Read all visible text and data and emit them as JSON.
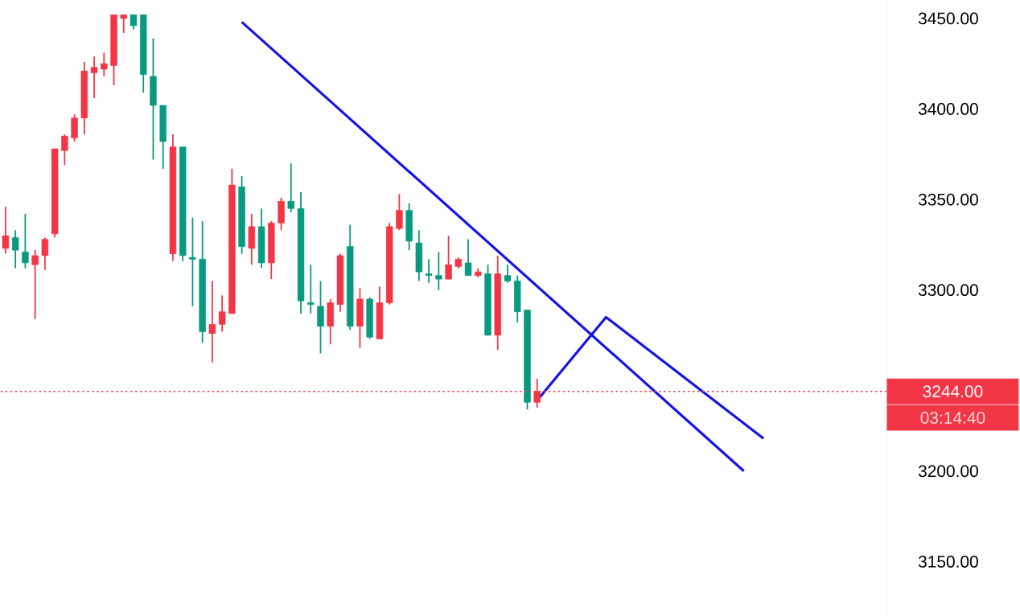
{
  "chart_data": {
    "type": "candlestick",
    "categories": [
      null,
      null,
      null,
      null,
      null,
      null,
      null,
      null,
      null,
      null,
      null,
      null,
      null,
      null,
      null,
      null,
      null,
      null,
      null,
      null,
      null,
      null,
      null,
      null,
      null,
      null,
      null,
      null,
      null,
      null,
      null,
      null,
      null,
      null,
      null,
      null,
      null,
      null,
      null,
      null,
      null,
      null,
      null,
      null,
      null,
      null,
      null,
      null,
      null,
      null,
      null,
      null,
      null,
      null,
      null,
      null,
      null,
      null,
      null,
      null,
      null,
      null,
      null,
      null,
      null,
      null,
      null,
      null,
      null,
      null,
      null,
      null,
      null,
      null,
      null,
      null,
      null,
      null,
      null,
      null,
      null,
      null,
      null,
      null,
      null,
      null,
      null,
      null,
      null,
      null
    ],
    "ohlc": [
      [
        3323,
        3346,
        3320,
        3330
      ],
      [
        3329,
        3333,
        3312,
        3322
      ],
      [
        3321,
        3342,
        3312,
        3315
      ],
      [
        3314,
        3322,
        3284,
        3319
      ],
      [
        3319,
        3329,
        3311,
        3328
      ],
      [
        3331,
        3378,
        3329,
        3378
      ],
      [
        3377,
        3386,
        3369,
        3385
      ],
      [
        3384,
        3397,
        3382,
        3395
      ],
      [
        3395,
        3426,
        3386,
        3421
      ],
      [
        3420,
        3429,
        3406,
        3423
      ],
      [
        3422,
        3431,
        3418,
        3425
      ],
      [
        3424,
        3452,
        3413,
        3452
      ],
      [
        3450,
        3452,
        3442,
        3452
      ],
      [
        3452,
        3452,
        3444,
        3446
      ],
      [
        3452,
        3452,
        3409,
        3419
      ],
      [
        3418,
        3439,
        3372,
        3402
      ],
      [
        3402,
        3402,
        3367,
        3382
      ],
      [
        3320,
        3386,
        3316,
        3379
      ],
      [
        3379,
        3379,
        3316,
        3319
      ],
      [
        3318,
        3340,
        3291,
        3317
      ],
      [
        3317,
        3338,
        3271,
        3277
      ],
      [
        3276,
        3305,
        3260,
        3281
      ],
      [
        3281,
        3297,
        3277,
        3288
      ],
      [
        3287,
        3367,
        3287,
        3358
      ],
      [
        3357,
        3363,
        3320,
        3324
      ],
      [
        3323,
        3342,
        3314,
        3335
      ],
      [
        3335,
        3345,
        3312,
        3315
      ],
      [
        3315,
        3338,
        3306,
        3337
      ],
      [
        3337,
        3351,
        3333,
        3349
      ],
      [
        3349,
        3370,
        3343,
        3345
      ],
      [
        3345,
        3354,
        3287,
        3294
      ],
      [
        3293,
        3314,
        3287,
        3292
      ],
      [
        3291,
        3305,
        3265,
        3280
      ],
      [
        3280,
        3295,
        3270,
        3293
      ],
      [
        3292,
        3320,
        3288,
        3319
      ],
      [
        3324,
        3336,
        3278,
        3280
      ],
      [
        3280,
        3301,
        3268,
        3295
      ],
      [
        3295,
        3296,
        3273,
        3274
      ],
      [
        3273,
        3302,
        3273,
        3293
      ],
      [
        3293,
        3337,
        3292,
        3335
      ],
      [
        3334,
        3353,
        3333,
        3344
      ],
      [
        3344,
        3348,
        3322,
        3327
      ],
      [
        3326,
        3333,
        3305,
        3310
      ],
      [
        3309,
        3317,
        3304,
        3308
      ],
      [
        3308,
        3321,
        3300,
        3306
      ],
      [
        3306,
        3330,
        3306,
        3314
      ],
      [
        3313,
        3318,
        3312,
        3317
      ],
      [
        3315,
        3328,
        3308,
        3308
      ],
      [
        3308,
        3312,
        3307,
        3310
      ],
      [
        3309,
        3314,
        3275,
        3275
      ],
      [
        3275,
        3319,
        3267,
        3309
      ],
      [
        3308,
        3314,
        3304,
        3305
      ],
      [
        3305,
        3308,
        3282,
        3288
      ],
      [
        3289,
        3289,
        3234,
        3238
      ],
      [
        3238,
        3251,
        3235,
        3244
      ],
      null,
      null,
      null,
      null,
      null,
      null,
      null,
      null,
      null,
      null,
      null,
      null,
      null,
      null,
      null,
      null,
      null,
      null,
      null,
      null,
      null,
      null,
      null,
      null,
      null,
      null,
      null,
      null,
      null,
      null,
      null,
      null,
      null,
      null,
      null
    ],
    "colors": [
      "#f23645",
      "#089981",
      "#089981",
      "#f23645",
      "#f23645",
      "#f23645",
      "#f23645",
      "#f23645",
      "#f23645",
      "#f23645",
      "#f23645",
      "#f23645",
      "#f23645",
      "#089981",
      "#089981",
      "#089981",
      "#089981",
      "#f23645",
      "#089981",
      "#089981",
      "#089981",
      "#f23645",
      "#f23645",
      "#f23645",
      "#089981",
      "#f23645",
      "#089981",
      "#f23645",
      "#f23645",
      "#089981",
      "#089981",
      "#089981",
      "#089981",
      "#f23645",
      "#f23645",
      "#089981",
      "#f23645",
      "#089981",
      "#f23645",
      "#f23645",
      "#f23645",
      "#089981",
      "#089981",
      "#089981",
      "#089981",
      "#f23645",
      "#f23645",
      "#089981",
      "#f23645",
      "#089981",
      "#f23645",
      "#089981",
      "#089981",
      "#089981",
      "#f23645",
      null,
      null,
      null,
      null,
      null,
      null,
      null,
      null,
      null,
      null,
      null,
      null,
      null,
      null,
      null,
      null,
      null,
      null,
      null,
      null,
      null,
      null,
      null,
      null,
      null,
      null,
      null,
      null,
      null,
      null,
      null,
      null,
      null,
      null,
      null
    ],
    "ylim": [
      3120,
      3460
    ],
    "yticks": [
      {
        "value": 3150,
        "label": "3150.00"
      },
      {
        "value": 3200,
        "label": "3200.00"
      },
      {
        "value": 3300,
        "label": "3300.00"
      },
      {
        "value": 3350,
        "label": "3350.00"
      },
      {
        "value": 3400,
        "label": "3400.00"
      },
      {
        "value": 3450,
        "label": "3450.00"
      }
    ],
    "tick_labels": "y",
    "series": [
      {
        "type": "line",
        "color": "#1414e6",
        "values": [
          null,
          null,
          null,
          null,
          null,
          null,
          null,
          null,
          null,
          null,
          null,
          null,
          null,
          null,
          null,
          null,
          null,
          null,
          null,
          null,
          null,
          null,
          null,
          null,
          3448,
          null,
          null,
          null,
          null,
          null,
          null,
          null,
          null,
          null,
          null,
          null,
          null,
          null,
          null,
          null,
          null,
          null,
          null,
          null,
          null,
          null,
          null,
          null,
          null,
          null,
          null,
          null,
          null,
          null,
          null,
          null,
          null,
          null,
          null,
          null,
          null,
          null,
          null,
          null,
          null,
          null,
          null,
          null,
          null,
          null,
          null,
          null,
          null,
          null,
          null,
          3200,
          null,
          null,
          null,
          null,
          null,
          null,
          null,
          null,
          null,
          null,
          null,
          null,
          null,
          null
        ]
      },
      {
        "type": "line",
        "color": "#1414e6",
        "values": [
          null,
          null,
          null,
          null,
          null,
          null,
          null,
          null,
          null,
          null,
          null,
          null,
          null,
          null,
          null,
          null,
          null,
          null,
          null,
          null,
          null,
          null,
          null,
          null,
          null,
          null,
          null,
          null,
          null,
          null,
          null,
          null,
          null,
          null,
          null,
          null,
          null,
          null,
          null,
          null,
          null,
          null,
          null,
          null,
          null,
          null,
          null,
          null,
          null,
          null,
          null,
          null,
          null,
          null,
          3239,
          null,
          null,
          null,
          null,
          null,
          null,
          3285,
          null,
          null,
          null,
          null,
          null,
          null,
          null,
          null,
          null,
          null,
          null,
          null,
          null,
          null,
          null,
          3218,
          null,
          null,
          null,
          null,
          null,
          null,
          null,
          null,
          null,
          null,
          null,
          null
        ]
      }
    ],
    "ref_lines": [
      {
        "axis": "y",
        "value": 3244,
        "label": "3244.00",
        "color": "#f23645",
        "line_style": "dotted"
      }
    ],
    "annotations": [
      "03:14:40"
    ]
  }
}
